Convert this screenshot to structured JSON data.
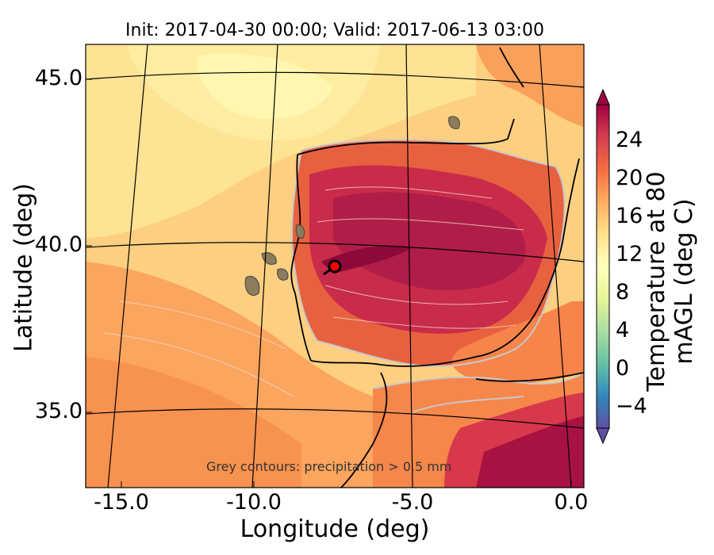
{
  "title": "Init: 2017-04-30 00:00; Valid: 2017-06-13 03:00",
  "xlabel": "Longitude (deg)",
  "ylabel": "Latitude (deg)",
  "note": "Grey contours: precipitation  > 0.5 mm",
  "colorbar": {
    "label": "Temperature at 80 mAGL (deg C)",
    "ticks": [
      "−4",
      "0",
      "4",
      "8",
      "12",
      "16",
      "20",
      "24"
    ],
    "tick_values": [
      -4,
      0,
      4,
      8,
      12,
      16,
      20,
      24
    ],
    "range": [
      -7,
      27
    ],
    "colors": [
      "#5e4fa2",
      "#3288bd",
      "#66c2a5",
      "#abdda4",
      "#e6f598",
      "#ffffbf",
      "#fee08b",
      "#fdae61",
      "#f46d43",
      "#d53e4f",
      "#9e0142"
    ]
  },
  "x_ticks": [
    "-15.0",
    "-10.0",
    "-5.0",
    "0.0"
  ],
  "y_ticks": [
    "45.0",
    "40.0",
    "35.0"
  ],
  "chart_data": {
    "type": "map",
    "xlim": [
      -16,
      0.1
    ],
    "ylim": [
      32.7,
      46
    ],
    "marker": {
      "lon": -7.6,
      "lat": 39.3
    }
  }
}
